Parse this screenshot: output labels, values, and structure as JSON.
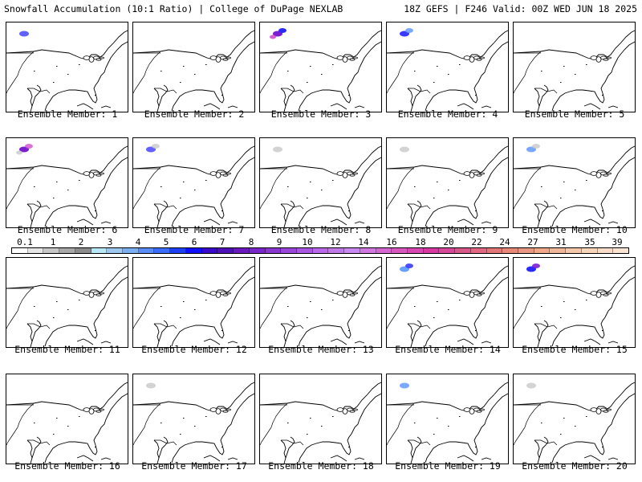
{
  "header": {
    "left": "Snowfall Accumulation (10:1 Ratio) | College of DuPage NEXLAB",
    "right": "18Z GEFS | F246 Valid: 00Z WED JUN 18 2025"
  },
  "panels": [
    {
      "member": "Ensemble Member: 1",
      "snow": [
        {
          "c": "#5050ff",
          "a": 0.9
        }
      ]
    },
    {
      "member": "Ensemble Member: 2",
      "snow": []
    },
    {
      "member": "Ensemble Member: 3",
      "snow": [
        {
          "c": "#7a1fd0",
          "a": 1
        },
        {
          "c": "#2a2aff",
          "a": 1
        },
        {
          "c": "#d050d0",
          "a": 0.9
        }
      ]
    },
    {
      "member": "Ensemble Member: 4",
      "snow": [
        {
          "c": "#3a3aff",
          "a": 1
        },
        {
          "c": "#6aa0ff",
          "a": 0.9
        }
      ]
    },
    {
      "member": "Ensemble Member: 5",
      "snow": []
    },
    {
      "member": "Ensemble Member: 6",
      "snow": [
        {
          "c": "#7a1fd0",
          "a": 1
        },
        {
          "c": "#d050d0",
          "a": 0.8
        },
        {
          "c": "#c8c8c8",
          "a": 0.8
        }
      ]
    },
    {
      "member": "Ensemble Member: 7",
      "snow": [
        {
          "c": "#3a3aff",
          "a": 0.8
        },
        {
          "c": "#c8c8c8",
          "a": 0.8
        }
      ]
    },
    {
      "member": "Ensemble Member: 8",
      "snow": [
        {
          "c": "#c8c8c8",
          "a": 0.8
        }
      ]
    },
    {
      "member": "Ensemble Member: 9",
      "snow": [
        {
          "c": "#c8c8c8",
          "a": 0.8
        }
      ]
    },
    {
      "member": "Ensemble Member: 10",
      "snow": [
        {
          "c": "#6aa0ff",
          "a": 0.9
        },
        {
          "c": "#c8c8c8",
          "a": 0.8
        }
      ]
    },
    {
      "member": "Ensemble Member: 11",
      "snow": []
    },
    {
      "member": "Ensemble Member: 12",
      "snow": []
    },
    {
      "member": "Ensemble Member: 13",
      "snow": []
    },
    {
      "member": "Ensemble Member: 14",
      "snow": [
        {
          "c": "#6aa0ff",
          "a": 1
        },
        {
          "c": "#3a3aff",
          "a": 0.9
        }
      ]
    },
    {
      "member": "Ensemble Member: 15",
      "snow": [
        {
          "c": "#2a2aff",
          "a": 1
        },
        {
          "c": "#7a1fd0",
          "a": 0.9
        }
      ]
    },
    {
      "member": "Ensemble Member: 16",
      "snow": []
    },
    {
      "member": "Ensemble Member: 17",
      "snow": [
        {
          "c": "#c8c8c8",
          "a": 0.8
        }
      ]
    },
    {
      "member": "Ensemble Member: 18",
      "snow": []
    },
    {
      "member": "Ensemble Member: 19",
      "snow": [
        {
          "c": "#6aa0ff",
          "a": 0.9
        }
      ]
    },
    {
      "member": "Ensemble Member: 20",
      "snow": [
        {
          "c": "#c8c8c8",
          "a": 0.8
        }
      ]
    }
  ],
  "colorbar": {
    "labels": [
      "0.1",
      "1",
      "2",
      "3",
      "4",
      "5",
      "6",
      "7",
      "8",
      "9",
      "10",
      "12",
      "14",
      "16",
      "18",
      "20",
      "22",
      "24",
      "27",
      "31",
      "35",
      "39"
    ],
    "colors": [
      "#ffffff",
      "#e6e6e6",
      "#c8c8c8",
      "#a8a8a8",
      "#8c8c8c",
      "#b8e8f8",
      "#9cc8f0",
      "#7aaef0",
      "#5a8cf8",
      "#3c6cf8",
      "#1e40f0",
      "#1010f8",
      "#3a08c8",
      "#5010b8",
      "#6a18c0",
      "#7828c8",
      "#8838d0",
      "#9848d8",
      "#a858e0",
      "#b868e8",
      "#c078e8",
      "#c888f0",
      "#d078e0",
      "#d468d0",
      "#d858c0",
      "#d848b0",
      "#d838a0",
      "#d84898",
      "#d85888",
      "#e06880",
      "#e07878",
      "#e88878",
      "#e89880",
      "#f0a888",
      "#f0b898",
      "#f4c8a8",
      "#f8d4b8",
      "#fadcc8",
      "#fce4d0"
    ]
  },
  "colors": {
    "coast": "#000000",
    "lake_fill": "#ffffff"
  }
}
